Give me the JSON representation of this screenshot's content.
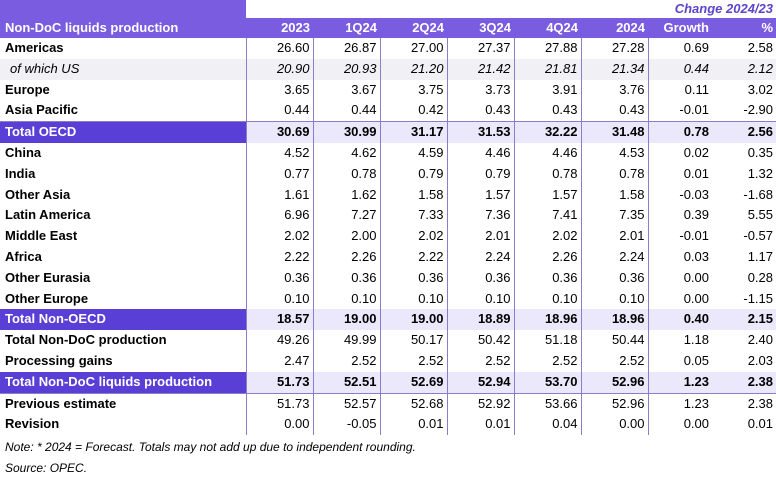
{
  "header": {
    "title": "Non-DoC liquids production",
    "group_label": "Change 2024/23",
    "columns": [
      "2023",
      "1Q24",
      "2Q24",
      "3Q24",
      "4Q24",
      "2024",
      "Growth",
      "%"
    ]
  },
  "rows": [
    {
      "label": "Americas",
      "values": [
        "26.60",
        "26.87",
        "27.00",
        "27.37",
        "27.88",
        "27.28",
        "0.69",
        "2.58"
      ]
    },
    {
      "label": "of which US",
      "values": [
        "20.90",
        "20.93",
        "21.20",
        "21.42",
        "21.81",
        "21.34",
        "0.44",
        "2.12"
      ]
    },
    {
      "label": "Europe",
      "values": [
        "3.65",
        "3.67",
        "3.75",
        "3.73",
        "3.91",
        "3.76",
        "0.11",
        "3.02"
      ]
    },
    {
      "label": "Asia Pacific",
      "values": [
        "0.44",
        "0.44",
        "0.42",
        "0.43",
        "0.43",
        "0.43",
        "-0.01",
        "-2.90"
      ]
    },
    {
      "label": "Total OECD",
      "values": [
        "30.69",
        "30.99",
        "31.17",
        "31.53",
        "32.22",
        "31.48",
        "0.78",
        "2.56"
      ]
    },
    {
      "label": "China",
      "values": [
        "4.52",
        "4.62",
        "4.59",
        "4.46",
        "4.46",
        "4.53",
        "0.02",
        "0.35"
      ]
    },
    {
      "label": "India",
      "values": [
        "0.77",
        "0.78",
        "0.79",
        "0.79",
        "0.78",
        "0.78",
        "0.01",
        "1.32"
      ]
    },
    {
      "label": "Other Asia",
      "values": [
        "1.61",
        "1.62",
        "1.58",
        "1.57",
        "1.57",
        "1.58",
        "-0.03",
        "-1.68"
      ]
    },
    {
      "label": "Latin America",
      "values": [
        "6.96",
        "7.27",
        "7.33",
        "7.36",
        "7.41",
        "7.35",
        "0.39",
        "5.55"
      ]
    },
    {
      "label": "Middle East",
      "values": [
        "2.02",
        "2.00",
        "2.02",
        "2.01",
        "2.02",
        "2.01",
        "-0.01",
        "-0.57"
      ]
    },
    {
      "label": "Africa",
      "values": [
        "2.22",
        "2.26",
        "2.22",
        "2.24",
        "2.26",
        "2.24",
        "0.03",
        "1.17"
      ]
    },
    {
      "label": "Other Eurasia",
      "values": [
        "0.36",
        "0.36",
        "0.36",
        "0.36",
        "0.36",
        "0.36",
        "0.00",
        "0.28"
      ]
    },
    {
      "label": "Other Europe",
      "values": [
        "0.10",
        "0.10",
        "0.10",
        "0.10",
        "0.10",
        "0.10",
        "0.00",
        "-1.15"
      ]
    },
    {
      "label": "Total Non-OECD",
      "values": [
        "18.57",
        "19.00",
        "19.00",
        "18.89",
        "18.96",
        "18.96",
        "0.40",
        "2.15"
      ]
    },
    {
      "label": "Total Non-DoC production",
      "values": [
        "49.26",
        "49.99",
        "50.17",
        "50.42",
        "51.18",
        "50.44",
        "1.18",
        "2.40"
      ]
    },
    {
      "label": "Processing gains",
      "values": [
        "2.47",
        "2.52",
        "2.52",
        "2.52",
        "2.52",
        "2.52",
        "0.05",
        "2.03"
      ]
    },
    {
      "label": "Total Non-DoC liquids production",
      "values": [
        "51.73",
        "52.51",
        "52.69",
        "52.94",
        "53.70",
        "52.96",
        "1.23",
        "2.38"
      ]
    },
    {
      "label": "Previous estimate",
      "values": [
        "51.73",
        "52.57",
        "52.68",
        "52.92",
        "53.66",
        "52.96",
        "1.23",
        "2.38"
      ]
    },
    {
      "label": "Revision",
      "values": [
        "0.00",
        "-0.05",
        "0.01",
        "0.01",
        "0.04",
        "0.00",
        "0.00",
        "0.01"
      ]
    }
  ],
  "notes": {
    "note": "Note: * 2024 = Forecast. Totals may not add up due to independent rounding.",
    "source": "Source: OPEC."
  },
  "colors": {
    "accent": "#5a3fd6",
    "header_bg": "#7a5ce0",
    "total_row_bg": "#ece8fb"
  }
}
